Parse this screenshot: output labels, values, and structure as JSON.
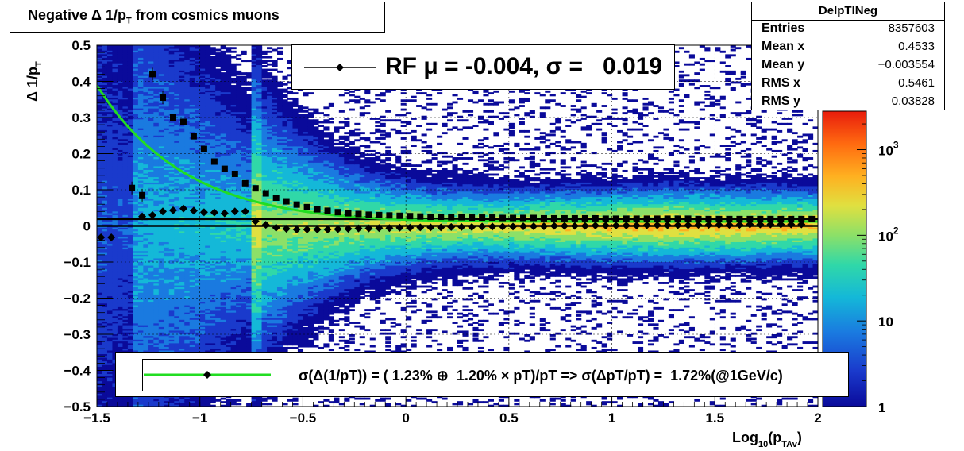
{
  "title": "Negative Δ 1/p",
  "title_sub": "T",
  "title_suffix": " from cosmics muons",
  "stats": {
    "name": "DelpTINeg",
    "rows": [
      {
        "key": "Entries",
        "value": "8357603"
      },
      {
        "key": "Mean x",
        "value": "0.4533"
      },
      {
        "key": "Mean y",
        "value": "−0.003554"
      },
      {
        "key": "RMS x",
        "value": "0.5461"
      },
      {
        "key": "RMS y",
        "value": "0.03828"
      }
    ]
  },
  "rf_legend": "RF μ = -0.004, σ =   0.019",
  "resolution_legend": "σ(Δ(1/pT)) = ( 1.23% ⊕  1.20% × pT)/pT => σ(ΔpT/pT) =  1.72%(@1GeV/c)",
  "colors": {
    "fit_curve": "#22dd22",
    "markers": "#000000",
    "palette": [
      "#0a0a9a",
      "#1a3acc",
      "#1a7ae0",
      "#14b8d8",
      "#30d8a8",
      "#8ce068",
      "#e0e040",
      "#ffb020",
      "#ff6a10",
      "#e81c0c"
    ]
  },
  "chart_data": {
    "type": "heatmap",
    "title": "Negative Δ 1/pT from cosmics muons",
    "xlabel": "Log10(pTAv)",
    "ylabel": "Δ 1/pT",
    "xlim": [
      -1.5,
      2
    ],
    "ylim": [
      -0.5,
      0.5
    ],
    "x_ticks": [
      -1.5,
      -1,
      -0.5,
      0,
      0.5,
      1,
      1.5,
      2
    ],
    "x_tick_labels": [
      "−1.5",
      "−1",
      "−0.5",
      "0",
      "0.5",
      "1",
      "1.5",
      "2"
    ],
    "y_ticks": [
      -0.5,
      -0.4,
      -0.3,
      -0.2,
      -0.1,
      0,
      0.1,
      0.2,
      0.3,
      0.4,
      0.5
    ],
    "y_tick_labels": [
      "−0.5",
      "−0.4",
      "−0.3",
      "−0.2",
      "−0.1",
      "0",
      "0.1",
      "0.2",
      "0.3",
      "0.4",
      "0.5"
    ],
    "z_scale": "log",
    "z_ticks": [
      1,
      10,
      100,
      1000
    ],
    "z_tick_labels": [
      "1",
      "10",
      "10^2",
      "10^3"
    ],
    "grid": true,
    "sigma_points": {
      "name": "",
      "x": [
        -1.33,
        -1.28,
        -1.23,
        -1.18,
        -1.13,
        -1.08,
        -1.03,
        -0.98,
        -0.93,
        -0.88,
        -0.83,
        -0.78,
        -0.73,
        -0.68,
        -0.63,
        -0.58,
        -0.53,
        -0.48,
        -0.43,
        -0.38,
        -0.33,
        -0.28,
        -0.23,
        -0.18,
        -0.13,
        -0.08,
        -0.03,
        0.02,
        0.07,
        0.12,
        0.17,
        0.22,
        0.27,
        0.32,
        0.37,
        0.42,
        0.47,
        0.52,
        0.57,
        0.62,
        0.67,
        0.72,
        0.77,
        0.82,
        0.87,
        0.92,
        0.97,
        1.02,
        1.07,
        1.12,
        1.17,
        1.22,
        1.27,
        1.32,
        1.37,
        1.42,
        1.47,
        1.52,
        1.57,
        1.62,
        1.67,
        1.72,
        1.77,
        1.82,
        1.87,
        1.92,
        1.97
      ],
      "y": [
        0.105,
        0.085,
        0.42,
        0.355,
        0.3,
        0.288,
        0.248,
        0.213,
        0.178,
        0.158,
        0.144,
        0.118,
        0.104,
        0.09,
        0.078,
        0.068,
        0.059,
        0.052,
        0.046,
        0.042,
        0.038,
        0.035,
        0.033,
        0.031,
        0.03,
        0.029,
        0.028,
        0.027,
        0.026,
        0.025,
        0.025,
        0.024,
        0.024,
        0.023,
        0.023,
        0.023,
        0.022,
        0.022,
        0.022,
        0.022,
        0.021,
        0.021,
        0.021,
        0.021,
        0.021,
        0.021,
        0.02,
        0.02,
        0.02,
        0.02,
        0.02,
        0.02,
        0.02,
        0.02,
        0.02,
        0.019,
        0.019,
        0.019,
        0.019,
        0.019,
        0.019,
        0.019,
        0.019,
        0.019,
        0.019,
        0.019,
        0.019
      ]
    },
    "mean_points": {
      "name": "",
      "x": [
        -1.48,
        -1.43,
        -1.28,
        -1.23,
        -1.18,
        -1.13,
        -1.08,
        -1.03,
        -0.98,
        -0.93,
        -0.88,
        -0.83,
        -0.78,
        -0.73,
        -0.68,
        -0.63,
        -0.58,
        -0.53,
        -0.48,
        -0.43,
        -0.38,
        -0.33,
        -0.28,
        -0.23,
        -0.18,
        -0.13,
        -0.08,
        -0.03,
        0.02,
        0.07,
        0.12,
        0.17,
        0.22,
        0.27,
        0.32,
        0.37,
        0.42,
        0.47,
        0.52,
        0.57,
        0.62,
        0.67,
        0.72,
        0.77,
        0.82,
        0.87,
        0.92,
        0.97,
        1.02,
        1.07,
        1.12,
        1.17,
        1.22,
        1.27,
        1.32,
        1.37,
        1.42,
        1.47,
        1.52,
        1.57,
        1.62,
        1.67,
        1.72,
        1.77,
        1.82,
        1.87,
        1.92,
        1.97
      ],
      "y": [
        -0.032,
        -0.032,
        0.026,
        0.03,
        0.04,
        0.043,
        0.048,
        0.042,
        0.038,
        0.037,
        0.035,
        0.04,
        0.04,
        0.013,
        0.003,
        -0.005,
        -0.008,
        -0.01,
        -0.01,
        -0.01,
        -0.01,
        -0.009,
        -0.008,
        -0.007,
        -0.007,
        -0.006,
        -0.006,
        -0.005,
        -0.005,
        -0.004,
        -0.004,
        -0.004,
        -0.003,
        -0.003,
        -0.003,
        -0.002,
        -0.002,
        -0.002,
        -0.002,
        -0.001,
        -0.001,
        -0.001,
        0.0,
        0.0,
        0.0,
        0.0,
        0.001,
        0.001,
        0.001,
        0.001,
        0.001,
        0.002,
        0.002,
        0.002,
        0.002,
        0.002,
        0.003,
        0.003,
        0.003,
        0.003,
        0.003,
        0.004,
        0.004,
        0.004,
        0.004,
        0.004,
        0.004
      ]
    },
    "fit_curve": {
      "name": "",
      "form": "sqrt(a^2/pT^2 + b^2), pT = 10^x",
      "a": 0.0123,
      "b": 0.012,
      "x_range": [
        -1.5,
        2
      ]
    },
    "horizontal_lines": [
      {
        "y": 0.0,
        "label": "zero"
      },
      {
        "y": 0.019,
        "label": "sigma"
      }
    ],
    "dashed_line": {
      "y_at_right": 0.012
    }
  }
}
